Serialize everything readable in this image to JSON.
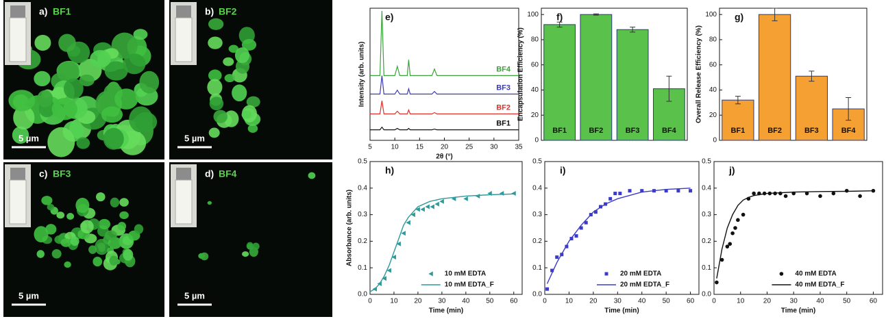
{
  "images": [
    {
      "label": "a)",
      "name": "BF1",
      "scale_bar": "5 µm"
    },
    {
      "label": "b)",
      "name": "BF2",
      "scale_bar": "5 µm"
    },
    {
      "label": "c)",
      "name": "BF3",
      "scale_bar": "5 µm"
    },
    {
      "label": "d)",
      "name": "BF4",
      "scale_bar": "5 µm"
    }
  ],
  "chart_data": [
    {
      "type": "xrd",
      "panel_label": "e)",
      "xlabel": "2θ (°)",
      "ylabel": "Intensity (arb. units)",
      "xlim": [
        5,
        35
      ],
      "xticks": [
        5,
        10,
        15,
        20,
        25,
        30,
        35
      ],
      "ylim": [
        0,
        100
      ],
      "x": [
        5,
        7,
        7.4,
        7.8,
        10,
        10.5,
        11,
        12.5,
        12.8,
        13.1,
        17.5,
        18,
        18.5,
        35
      ],
      "series": [
        {
          "name": "BF4",
          "color": "#3aa33a",
          "values": [
            49,
            49,
            98,
            49,
            49,
            56,
            49,
            49,
            61,
            49,
            49,
            54,
            49,
            49
          ]
        },
        {
          "name": "BF3",
          "color": "#3b3bb8",
          "values": [
            35,
            35,
            49,
            35,
            35,
            38,
            35,
            35,
            39,
            35,
            35,
            37,
            35,
            35
          ]
        },
        {
          "name": "BF2",
          "color": "#e0302a",
          "values": [
            20,
            20,
            30,
            20,
            20,
            22,
            20,
            20,
            23,
            20,
            20,
            21,
            20,
            20
          ]
        },
        {
          "name": "BF1",
          "color": "#111111",
          "values": [
            8,
            8,
            10,
            8,
            8,
            9,
            8,
            8,
            9,
            8,
            8,
            8.5,
            8,
            8
          ]
        }
      ]
    },
    {
      "type": "bar",
      "panel_label": "f)",
      "ylabel": "Encapsulation Efficiency (%)",
      "categories": [
        "BF1",
        "BF2",
        "BF3",
        "BF4"
      ],
      "values": [
        92,
        100,
        88,
        41
      ],
      "errors": [
        2,
        0.5,
        2,
        10
      ],
      "color": "#5ac24a",
      "ylim": [
        0,
        105
      ],
      "yticks": [
        0,
        20,
        40,
        60,
        80,
        100
      ]
    },
    {
      "type": "bar",
      "panel_label": "g)",
      "ylabel": "Overall Release Efficiency (%)",
      "categories": [
        "BF1",
        "BF2",
        "BF3",
        "BF4"
      ],
      "values": [
        32,
        100,
        51,
        25
      ],
      "errors": [
        3,
        5,
        4,
        9
      ],
      "color": "#f5a033",
      "ylim": [
        0,
        105
      ],
      "yticks": [
        0,
        20,
        40,
        60,
        80,
        100
      ]
    },
    {
      "type": "scatter",
      "panel_label": "h)",
      "xlabel": "Time (min)",
      "ylabel": "Absorbance (arb. units)",
      "xlim": [
        0,
        63.5
      ],
      "xticks": [
        0,
        10,
        20,
        30,
        40,
        50,
        60
      ],
      "ylim": [
        0,
        0.5
      ],
      "yticks": [
        {
          "value": 0,
          "label": "0.0"
        },
        0.1,
        0.2,
        0.3,
        0.4,
        0.5
      ],
      "series": [
        {
          "name": "10 mM EDTA",
          "kind": "points",
          "marker": "triangle-left",
          "color": "#2e9a9a",
          "x": [
            2,
            4,
            6,
            8,
            10,
            12,
            14,
            16,
            18,
            20,
            22,
            24,
            26,
            28,
            30,
            35,
            40,
            45,
            50,
            55,
            60
          ],
          "values": [
            0.02,
            0.04,
            0.06,
            0.09,
            0.14,
            0.19,
            0.23,
            0.27,
            0.3,
            0.32,
            0.32,
            0.33,
            0.33,
            0.34,
            0.35,
            0.36,
            0.36,
            0.37,
            0.38,
            0.38,
            0.38
          ]
        },
        {
          "name": "10 mM EDTA_F",
          "kind": "line",
          "color": "#2e9a9a",
          "x": [
            0,
            2,
            4,
            6,
            8,
            10,
            12,
            14,
            16,
            18,
            20,
            25,
            30,
            40,
            50,
            60
          ],
          "values": [
            0.01,
            0.02,
            0.04,
            0.07,
            0.11,
            0.16,
            0.21,
            0.26,
            0.29,
            0.31,
            0.33,
            0.35,
            0.36,
            0.37,
            0.375,
            0.378
          ]
        }
      ]
    },
    {
      "type": "scatter",
      "panel_label": "i)",
      "xlabel": "Time (min)",
      "xlim": [
        0,
        63.5
      ],
      "xticks": [
        0,
        10,
        20,
        30,
        40,
        50,
        60
      ],
      "ylim": [
        0,
        0.5
      ],
      "yticks": [
        {
          "value": 0,
          "label": "0.0"
        },
        0.1,
        0.2,
        0.3,
        0.4,
        0.5
      ],
      "series": [
        {
          "name": "20 mM EDTA",
          "kind": "points",
          "marker": "square",
          "color": "#3b3bc8",
          "x": [
            1,
            3,
            5,
            7,
            9,
            11,
            13,
            15,
            17,
            19,
            21,
            23,
            25,
            27,
            29,
            31,
            35,
            40,
            45,
            50,
            55,
            60
          ],
          "values": [
            0.02,
            0.09,
            0.14,
            0.15,
            0.18,
            0.21,
            0.22,
            0.25,
            0.27,
            0.3,
            0.31,
            0.33,
            0.34,
            0.36,
            0.38,
            0.38,
            0.39,
            0.39,
            0.39,
            0.39,
            0.39,
            0.39
          ]
        },
        {
          "name": "20 mM EDTA_F",
          "kind": "line",
          "color": "#3b3bc8",
          "x": [
            1,
            5,
            10,
            15,
            20,
            25,
            30,
            40,
            50,
            60
          ],
          "values": [
            0.04,
            0.12,
            0.2,
            0.26,
            0.31,
            0.34,
            0.36,
            0.385,
            0.395,
            0.4
          ]
        }
      ]
    },
    {
      "type": "scatter",
      "panel_label": "j)",
      "xlabel": "Time (min)",
      "xlim": [
        0,
        63.5
      ],
      "xticks": [
        0,
        10,
        20,
        30,
        40,
        50,
        60
      ],
      "ylim": [
        0,
        0.5
      ],
      "yticks": [
        {
          "value": 0,
          "label": "0.0"
        },
        0.1,
        0.2,
        0.3,
        0.4,
        0.5
      ],
      "series": [
        {
          "name": "40 mM EDTA",
          "kind": "points",
          "marker": "circle",
          "color": "#111111",
          "x": [
            1,
            3,
            5,
            6,
            7,
            8,
            9,
            11,
            13,
            15,
            17,
            19,
            21,
            23,
            25,
            27,
            30,
            35,
            40,
            45,
            50,
            55,
            60
          ],
          "values": [
            0.045,
            0.13,
            0.18,
            0.19,
            0.23,
            0.25,
            0.28,
            0.3,
            0.36,
            0.38,
            0.38,
            0.38,
            0.38,
            0.38,
            0.38,
            0.37,
            0.38,
            0.38,
            0.37,
            0.38,
            0.39,
            0.37,
            0.39
          ]
        },
        {
          "name": "40 mM EDTA_F",
          "kind": "line",
          "color": "#111111",
          "x": [
            1,
            3,
            5,
            7,
            9,
            11,
            13,
            15,
            20,
            30,
            40,
            50,
            60
          ],
          "values": [
            0.06,
            0.17,
            0.25,
            0.3,
            0.335,
            0.355,
            0.365,
            0.372,
            0.38,
            0.385,
            0.387,
            0.388,
            0.39
          ]
        }
      ]
    }
  ]
}
